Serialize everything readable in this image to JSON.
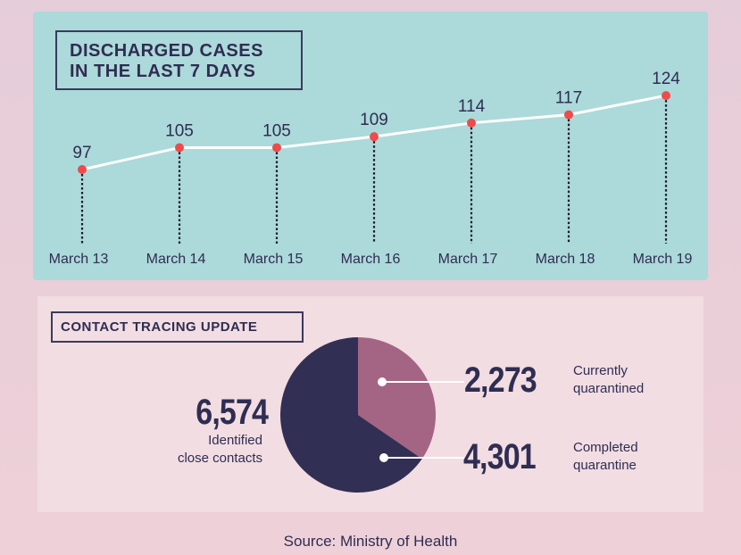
{
  "chart_data": [
    {
      "type": "line",
      "title": "DISCHARGED CASES IN THE LAST 7 DAYS",
      "title_lines": [
        "DISCHARGED CASES",
        "IN THE LAST 7 DAYS"
      ],
      "categories": [
        "March 13",
        "March 14",
        "March 15",
        "March 16",
        "March 17",
        "March 18",
        "March 19"
      ],
      "values": [
        97,
        105,
        105,
        109,
        114,
        117,
        124
      ],
      "colors": {
        "panel": "#acd9da",
        "line": "#ffffff",
        "marker": "#ef4b4b",
        "text": "#2f2d52"
      }
    },
    {
      "type": "pie",
      "title": "CONTACT TRACING UPDATE",
      "total": {
        "value": "6,574",
        "label_lines": [
          "Identified",
          "close contacts"
        ]
      },
      "slices": [
        {
          "value": 2273,
          "display": "2,273",
          "label_lines": [
            "Currently",
            "quarantined"
          ],
          "color": "#a46584"
        },
        {
          "value": 4301,
          "display": "4,301",
          "label_lines": [
            "Completed",
            "quarantine"
          ],
          "color": "#322f54"
        }
      ]
    }
  ],
  "source": "Source: Ministry of Health"
}
